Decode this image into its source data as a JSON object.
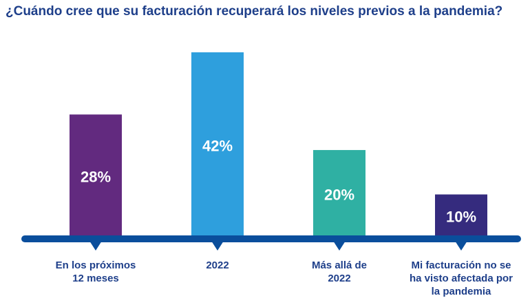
{
  "chart_data": {
    "type": "bar",
    "title": "¿Cuándo cree que su facturación recuperará los niveles previos a la pandemia?",
    "categories": [
      [
        "En los próximos",
        "12 meses"
      ],
      [
        "2022"
      ],
      [
        "Más allá de",
        "2022"
      ],
      [
        "Mi facturación no se",
        "ha visto afectada por",
        "la pandemia"
      ]
    ],
    "values": [
      28,
      42,
      20,
      10
    ],
    "value_labels": [
      "28%",
      "42%",
      "20%",
      "10%"
    ],
    "unit": "%",
    "ylim": [
      0,
      45
    ],
    "grid": false,
    "legend": "none",
    "colors": [
      "#622a7f",
      "#2e9fdd",
      "#2fb0a3",
      "#352b7e"
    ],
    "baseline_color": "#0a4e9c",
    "label_color": "#1e3f8a"
  }
}
